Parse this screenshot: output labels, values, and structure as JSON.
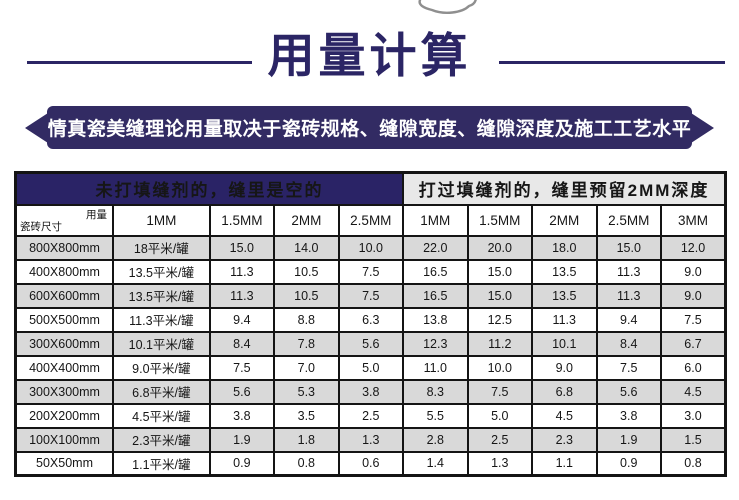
{
  "icons": {
    "top": "hand-gesture-icon"
  },
  "title": {
    "text": "用量计算"
  },
  "banner": {
    "text": "友情真瓷美缝理论用量取决于瓷砖规格、缝隙宽度、缝隙深度及施工工艺水平。"
  },
  "colors": {
    "title_navy": "#2b2565",
    "banner_bg": "#322b63",
    "table_header_navy": "#2a2366",
    "table_header_gray": "#e8e8e8",
    "row_shade_gray": "#d9d9d9",
    "border_black": "#141414"
  },
  "table": {
    "section_left": {
      "label": "未打填缝剂的，缝里是空的"
    },
    "section_right": {
      "label": "打过填缝剂的，缝里预留2MM深度"
    },
    "corner": {
      "top_right": "用量",
      "bottom_left": "瓷砖尺寸"
    },
    "column_headers": [
      "1MM",
      "1.5MM",
      "2MM",
      "2.5MM",
      "1MM",
      "1.5MM",
      "2MM",
      "2.5MM",
      "3MM"
    ],
    "rows": [
      {
        "size": "800X800mm",
        "values": [
          "18平米/罐",
          "15.0",
          "14.0",
          "10.0",
          "22.0",
          "20.0",
          "18.0",
          "15.0",
          "12.0"
        ]
      },
      {
        "size": "400X800mm",
        "values": [
          "13.5平米/罐",
          "11.3",
          "10.5",
          "7.5",
          "16.5",
          "15.0",
          "13.5",
          "11.3",
          "9.0"
        ]
      },
      {
        "size": "600X600mm",
        "values": [
          "13.5平米/罐",
          "11.3",
          "10.5",
          "7.5",
          "16.5",
          "15.0",
          "13.5",
          "11.3",
          "9.0"
        ]
      },
      {
        "size": "500X500mm",
        "values": [
          "11.3平米/罐",
          "9.4",
          "8.8",
          "6.3",
          "13.8",
          "12.5",
          "11.3",
          "9.4",
          "7.5"
        ]
      },
      {
        "size": "300X600mm",
        "values": [
          "10.1平米/罐",
          "8.4",
          "7.8",
          "5.6",
          "12.3",
          "11.2",
          "10.1",
          "8.4",
          "6.7"
        ]
      },
      {
        "size": "400X400mm",
        "values": [
          "9.0平米/罐",
          "7.5",
          "7.0",
          "5.0",
          "11.0",
          "10.0",
          "9.0",
          "7.5",
          "6.0"
        ]
      },
      {
        "size": "300X300mm",
        "values": [
          "6.8平米/罐",
          "5.6",
          "5.3",
          "3.8",
          "8.3",
          "7.5",
          "6.8",
          "5.6",
          "4.5"
        ]
      },
      {
        "size": "200X200mm",
        "values": [
          "4.5平米/罐",
          "3.8",
          "3.5",
          "2.5",
          "5.5",
          "5.0",
          "4.5",
          "3.8",
          "3.0"
        ]
      },
      {
        "size": "100X100mm",
        "values": [
          "2.3平米/罐",
          "1.9",
          "1.8",
          "1.3",
          "2.8",
          "2.5",
          "2.3",
          "1.9",
          "1.5"
        ]
      },
      {
        "size": "50X50mm",
        "values": [
          "1.1平米/罐",
          "0.9",
          "0.8",
          "0.6",
          "1.4",
          "1.3",
          "1.1",
          "0.9",
          "0.8"
        ]
      }
    ]
  }
}
